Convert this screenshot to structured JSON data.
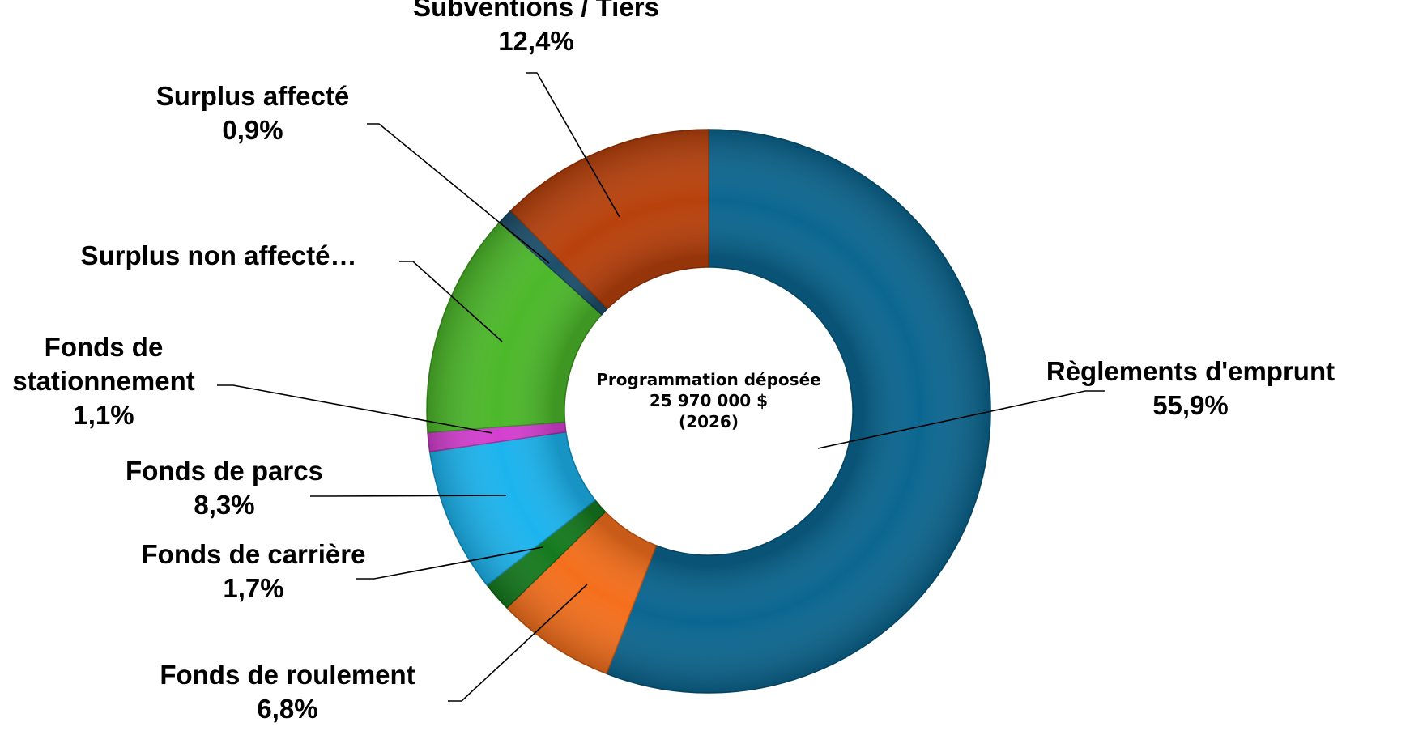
{
  "chart_data": {
    "type": "pie",
    "variant": "donut",
    "title": "",
    "center_text": [
      "Programmation déposée",
      "25 970 000 $",
      "(2026)"
    ],
    "slices": [
      {
        "label": "Règlements d'emprunt",
        "label_lines": [
          "Règlements d'emprunt"
        ],
        "value": 55.9,
        "display": "55,9%",
        "color": "#0b6690"
      },
      {
        "label": "Fonds de roulement",
        "label_lines": [
          "Fonds de roulement"
        ],
        "value": 6.8,
        "display": "6,8%",
        "color": "#f46f1c"
      },
      {
        "label": "Fonds de carrière",
        "label_lines": [
          "Fonds de carrière"
        ],
        "value": 1.7,
        "display": "1,7%",
        "color": "#157a1e"
      },
      {
        "label": "Fonds de parcs",
        "label_lines": [
          "Fonds de parcs"
        ],
        "value": 8.3,
        "display": "8,3%",
        "color": "#1cb4ee"
      },
      {
        "label": "Fonds de stationnement",
        "label_lines": [
          "Fonds de",
          "stationnement"
        ],
        "value": 1.1,
        "display": "1,1%",
        "color": "#d43fd0"
      },
      {
        "label": "Surplus non affecté…",
        "label_lines": [
          "Surplus non affecté…"
        ],
        "value": 12.9,
        "display": "",
        "color": "#4cb82a"
      },
      {
        "label": "Surplus affecté",
        "label_lines": [
          "Surplus affecté"
        ],
        "value": 0.9,
        "display": "0,9%",
        "color": "#1c4f6c"
      },
      {
        "label": "Subventions / Tiers",
        "label_lines": [
          "Subventions / Tiers"
        ],
        "value": 12.4,
        "display": "12,4%",
        "color": "#b8410c"
      }
    ],
    "legend": "none",
    "data_labels": "outside-with-leader-lines"
  }
}
